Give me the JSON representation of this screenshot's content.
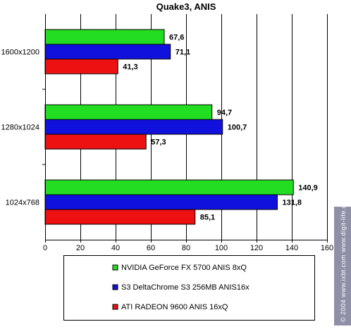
{
  "chart_data": {
    "type": "bar",
    "orientation": "horizontal",
    "title": "Quake3, ANIS",
    "categories": [
      "1600x1200",
      "1280x1024",
      "1024x768"
    ],
    "series": [
      {
        "name": "NVIDIA GeForce FX 5700 ANIS 8xQ",
        "values": [
          67.6,
          94.7,
          140.9
        ],
        "labels": [
          "67,6",
          "94,7",
          "140,9"
        ],
        "color": "#22dd22"
      },
      {
        "name": "S3 DeltaChrome S3 256MB ANIS16x",
        "values": [
          71.1,
          100.7,
          131.8
        ],
        "labels": [
          "71,1",
          "100,7",
          "131,8"
        ],
        "color": "#1111dd"
      },
      {
        "name": "ATI RADEON 9600 ANIS 16xQ",
        "values": [
          41.3,
          57.3,
          85.1
        ],
        "labels": [
          "41,3",
          "57,3",
          "85,1"
        ],
        "color": "#ee1111"
      }
    ],
    "xlim": [
      0,
      160
    ],
    "xticks": [
      0,
      20,
      40,
      60,
      80,
      100,
      120,
      140,
      160
    ],
    "grid": true,
    "legend_position": "bottom"
  },
  "watermark": "© 2004 www.ixbt.com www.digit-life.com"
}
